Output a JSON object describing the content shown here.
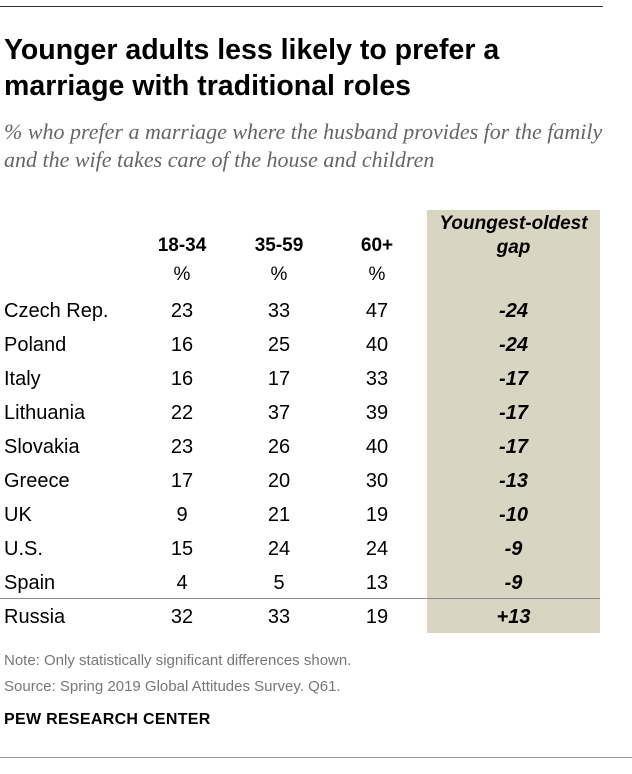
{
  "title": "Younger adults less likely to prefer a marriage with traditional roles",
  "subtitle": "% who prefer a marriage where the husband provides for the family and the wife takes care of the house and children",
  "chart_data": {
    "type": "table",
    "columns": [
      "18-34",
      "35-59",
      "60+"
    ],
    "unit_row": [
      "%",
      "%",
      "%"
    ],
    "gap_header": "Youngest-oldest gap",
    "rows": [
      {
        "country": "Czech Rep.",
        "values": [
          23,
          33,
          47
        ],
        "gap": "-24"
      },
      {
        "country": "Poland",
        "values": [
          16,
          25,
          40
        ],
        "gap": "-24"
      },
      {
        "country": "Italy",
        "values": [
          16,
          17,
          33
        ],
        "gap": "-17"
      },
      {
        "country": "Lithuania",
        "values": [
          22,
          37,
          39
        ],
        "gap": "-17"
      },
      {
        "country": "Slovakia",
        "values": [
          23,
          26,
          40
        ],
        "gap": "-17"
      },
      {
        "country": "Greece",
        "values": [
          17,
          20,
          30
        ],
        "gap": "-13"
      },
      {
        "country": "UK",
        "values": [
          9,
          21,
          19
        ],
        "gap": "-10"
      },
      {
        "country": "U.S.",
        "values": [
          15,
          24,
          24
        ],
        "gap": "-9"
      },
      {
        "country": "Spain",
        "values": [
          4,
          5,
          13
        ],
        "gap": "-9"
      },
      {
        "country": "Russia",
        "values": [
          32,
          33,
          19
        ],
        "gap": "+13"
      }
    ]
  },
  "note": "Note: Only statistically significant differences shown.",
  "source": "Source: Spring 2019 Global Attitudes Survey. Q61.",
  "footer": "PEW RESEARCH CENTER",
  "colors": {
    "gap_background": "#d9d5c3",
    "subtitle": "#666666",
    "note": "#777777"
  }
}
